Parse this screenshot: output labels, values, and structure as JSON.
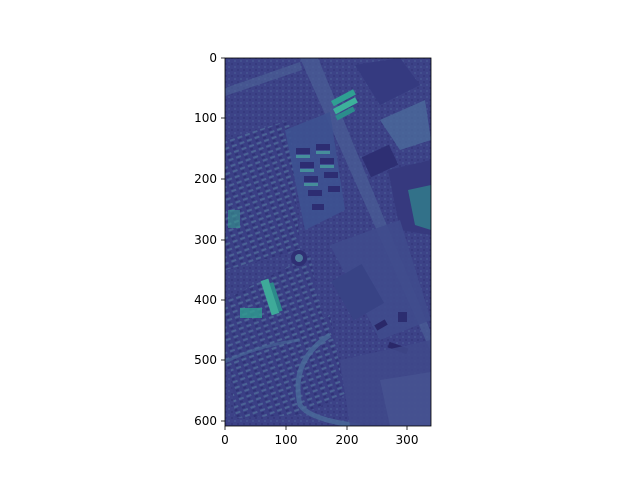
{
  "figure": {
    "background": "#ffffff",
    "colormap": "viridis-dark-region",
    "palette": {
      "base": "#3b3f86",
      "dark": "#2c2a6e",
      "mid": "#4a5a96",
      "light": "#4f7d9b",
      "teal": "#2fa091",
      "bright": "#4ec1a1"
    },
    "x_axis": {
      "ticks": [
        {
          "value": 0,
          "label": "0"
        },
        {
          "value": 100,
          "label": "100"
        },
        {
          "value": 200,
          "label": "200"
        },
        {
          "value": 300,
          "label": "300"
        }
      ]
    },
    "y_axis": {
      "ticks": [
        {
          "value": 0,
          "label": "0"
        },
        {
          "value": 100,
          "label": "100"
        },
        {
          "value": 200,
          "label": "200"
        },
        {
          "value": 300,
          "label": "300"
        },
        {
          "value": 400,
          "label": "400"
        },
        {
          "value": 500,
          "label": "500"
        },
        {
          "value": 600,
          "label": "600"
        }
      ]
    },
    "image_extent": {
      "width": 340,
      "height": 610
    }
  }
}
